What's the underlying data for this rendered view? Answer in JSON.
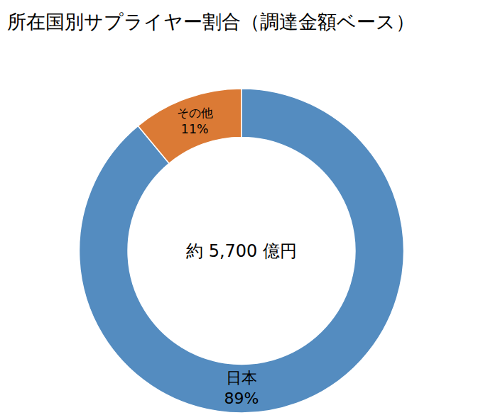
{
  "chart_data": {
    "type": "pie",
    "title": "所在国別サプライヤー割合（調達金額ベース）",
    "categories": [
      "日本",
      "その他"
    ],
    "values": [
      89,
      11
    ],
    "value_labels": [
      "89%",
      "11%"
    ],
    "colors": [
      "#548cc0",
      "#db7a35"
    ],
    "data_labels": true,
    "annotations": [
      "約 5,700 億円"
    ]
  }
}
